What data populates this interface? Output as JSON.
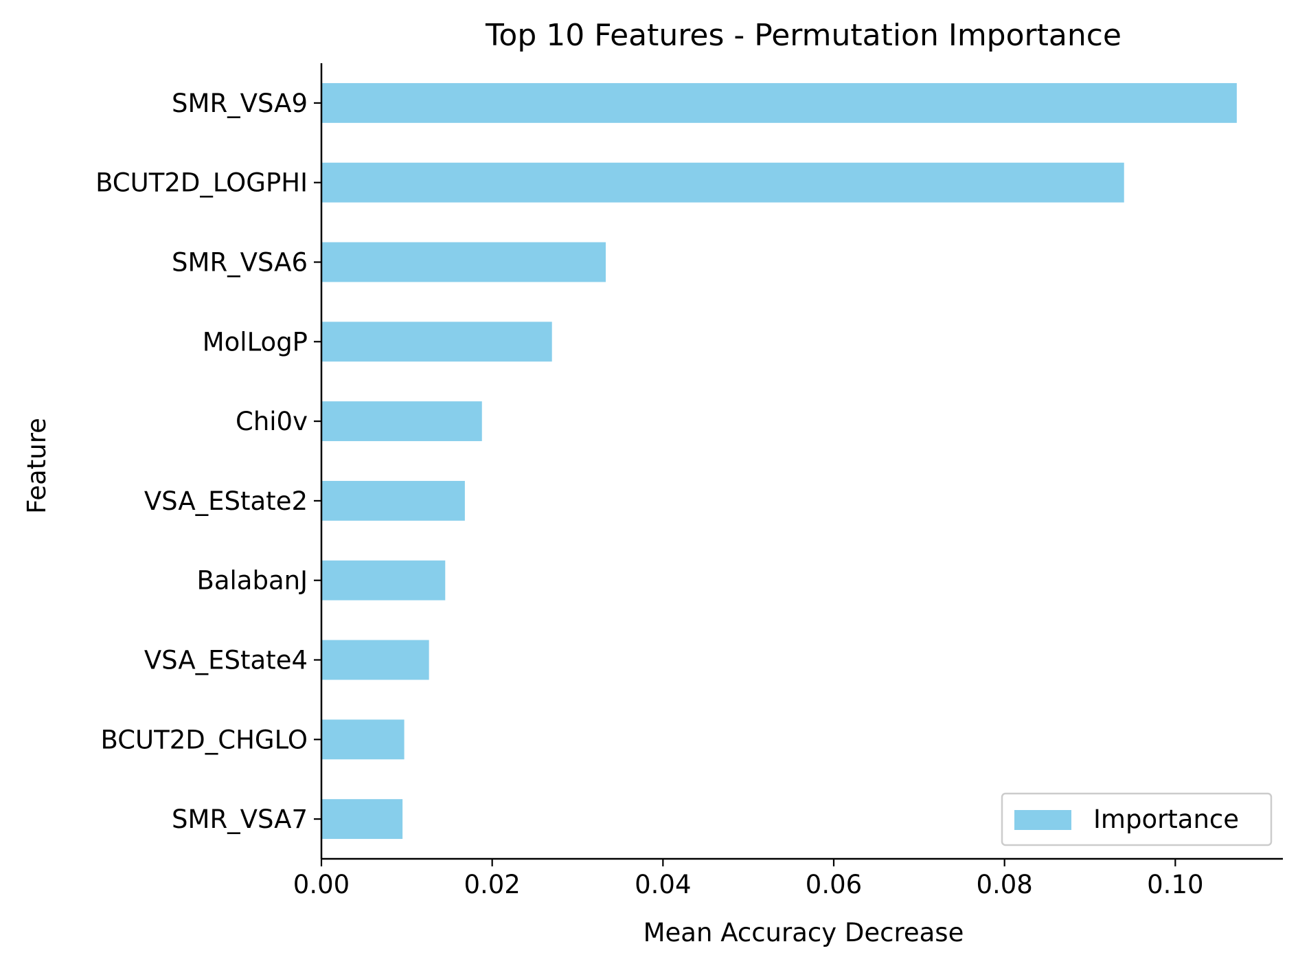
{
  "chart_data": {
    "type": "bar",
    "orientation": "horizontal",
    "title": "Top 10 Features - Permutation Importance",
    "xlabel": "Mean Accuracy Decrease",
    "ylabel": "Feature",
    "categories": [
      "SMR_VSA9",
      "BCUT2D_LOGPHI",
      "SMR_VSA6",
      "MolLogP",
      "Chi0v",
      "VSA_EState2",
      "BalabanJ",
      "VSA_EState4",
      "BCUT2D_CHGLO",
      "SMR_VSA7"
    ],
    "series": [
      {
        "name": "Importance",
        "color": "#87CEEB",
        "values": [
          0.1072,
          0.094,
          0.0333,
          0.027,
          0.0188,
          0.0168,
          0.0145,
          0.0126,
          0.0097,
          0.0095
        ]
      }
    ],
    "xlim": [
      0,
      0.1126
    ],
    "xticks": [
      "0.00",
      "0.02",
      "0.04",
      "0.06",
      "0.08",
      "0.10"
    ],
    "grid": false,
    "legend_position": "lower-right"
  }
}
